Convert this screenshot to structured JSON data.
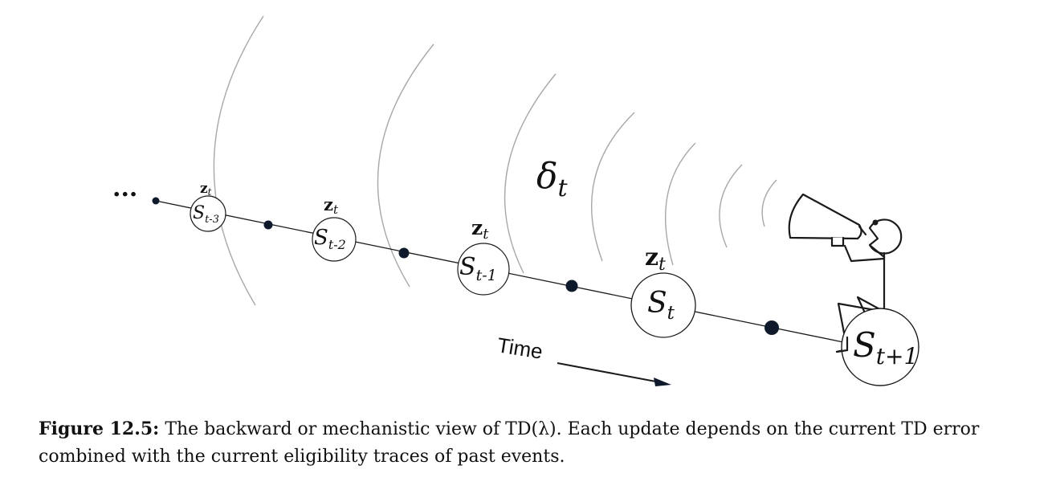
{
  "diagram": {
    "ellipsis": "...",
    "delta": {
      "symbol": "δ",
      "subscript": "t"
    },
    "time_label": "Time",
    "trace": {
      "symbol": "z",
      "subscript": "t"
    },
    "states": [
      {
        "symbol": "S",
        "subscript": "t-3"
      },
      {
        "symbol": "S",
        "subscript": "t-2"
      },
      {
        "symbol": "S",
        "subscript": "t-1"
      },
      {
        "symbol": "S",
        "subscript": "t"
      },
      {
        "symbol": "S",
        "subscript": "t+1"
      }
    ]
  },
  "caption": {
    "label": "Figure 12.5:",
    "text": "The backward or mechanistic view of TD(λ). Each update depends on the current TD error combined with the current eligibility traces of past events."
  }
}
